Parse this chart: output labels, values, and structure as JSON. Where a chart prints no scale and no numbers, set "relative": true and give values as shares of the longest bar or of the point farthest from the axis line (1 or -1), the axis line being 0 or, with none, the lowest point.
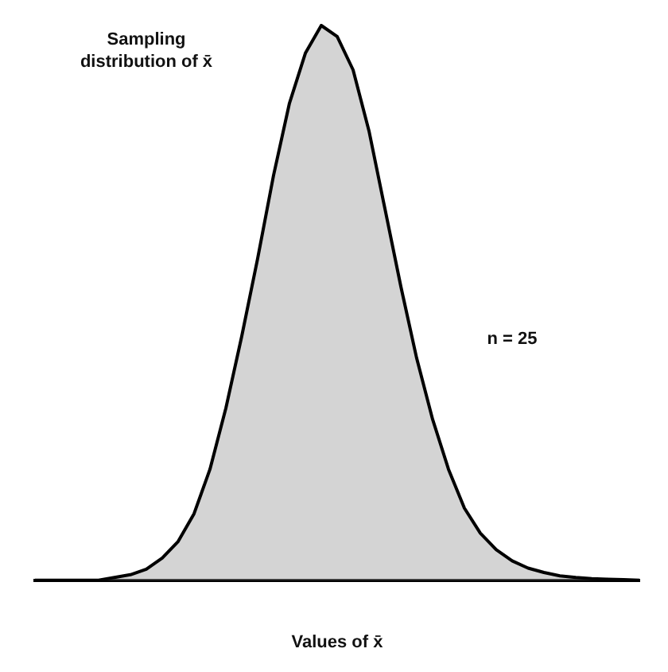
{
  "chart_data": {
    "type": "area",
    "relative": true,
    "xlabel": "Values of x̄",
    "annotations": [
      "Sampling distribution of x̄",
      "n = 25"
    ],
    "categories": [
      null,
      null,
      null,
      null,
      null,
      null,
      null,
      null,
      null,
      null,
      null,
      null,
      null,
      null,
      null,
      null,
      null,
      null,
      null,
      null,
      null,
      null,
      null,
      null,
      null,
      null,
      null,
      null,
      null,
      null,
      null,
      null,
      null,
      null,
      null,
      null,
      null,
      null,
      null
    ],
    "series": [
      {
        "color": "#000000",
        "values": [
          0,
          0,
          0,
          0,
          0,
          0.005,
          0.01,
          0.02,
          0.04,
          0.07,
          0.12,
          0.2,
          0.31,
          0.44,
          0.58,
          0.73,
          0.86,
          0.95,
          1,
          0.98,
          0.92,
          0.81,
          0.67,
          0.53,
          0.4,
          0.29,
          0.2,
          0.13,
          0.085,
          0.055,
          0.035,
          0.022,
          0.014,
          0.008,
          0.005,
          0.003,
          0.002,
          0.001,
          0
        ]
      }
    ],
    "grid": false,
    "legend": false
  }
}
